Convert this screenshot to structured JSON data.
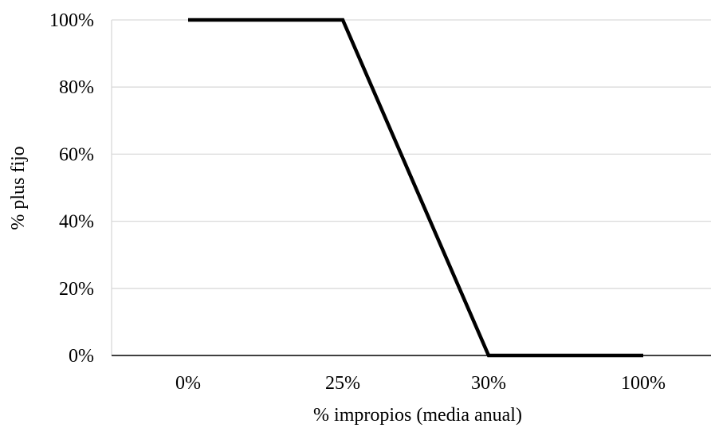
{
  "chart_data": {
    "type": "line",
    "categories": [
      "0%",
      "25%",
      "30%",
      "100%"
    ],
    "series": [
      {
        "values": [
          100,
          100,
          0,
          0
        ]
      }
    ],
    "xlabel": "% impropios (media anual)",
    "ylabel": "% plus fijo",
    "ylim": [
      0,
      100
    ],
    "y_ticks": [
      0,
      20,
      40,
      60,
      80,
      100
    ],
    "y_tick_labels": [
      "0%",
      "20%",
      "40%",
      "60%",
      "80%",
      "100%"
    ],
    "grid": true,
    "legend": "none",
    "colors": {
      "line": "#000000",
      "grid": "#d9d9d9",
      "axis": "#000000"
    }
  }
}
